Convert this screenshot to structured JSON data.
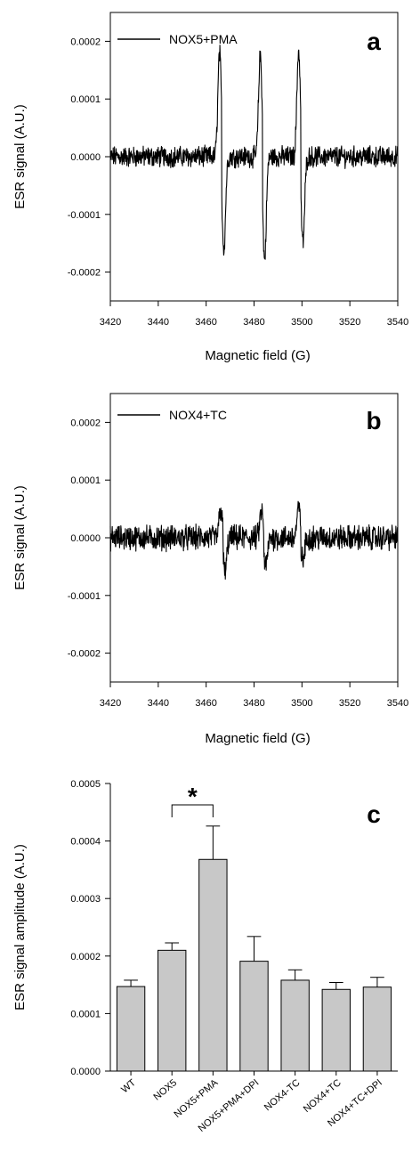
{
  "chart_data": [
    {
      "panel": "a",
      "type": "line",
      "xlabel": "Magnetic field (G)",
      "ylabel": "ESR signal (A.U.)",
      "xlim": [
        3420,
        3540
      ],
      "ylim": [
        -0.00025,
        0.00025
      ],
      "xticks": [
        3420,
        3440,
        3460,
        3480,
        3500,
        3520,
        3540
      ],
      "yticks": [
        -0.0002,
        -0.0001,
        0.0,
        0.0001,
        0.0002
      ],
      "xtick_labels": [
        "3420",
        "3440",
        "3460",
        "3480",
        "3500",
        "3520",
        "3540"
      ],
      "ytick_labels": [
        "-0.0002",
        "-0.0001",
        "0.0000",
        "0.0001",
        "0.0002"
      ],
      "legend": "top-left",
      "series": [
        {
          "name": "NOX5+PMA",
          "baseline_noise": 1.5e-05,
          "peaks": [
            {
              "x": 3466.5,
              "pos": 0.00018,
              "neg": -0.00016
            },
            {
              "x": 3483.5,
              "pos": 0.000175,
              "neg": -0.00018
            },
            {
              "x": 3499.5,
              "pos": 0.000185,
              "neg": -0.00015
            }
          ]
        }
      ]
    },
    {
      "panel": "b",
      "type": "line",
      "xlabel": "Magnetic field (G)",
      "ylabel": "ESR signal (A.U.)",
      "xlim": [
        3420,
        3540
      ],
      "ylim": [
        -0.00025,
        0.00025
      ],
      "xticks": [
        3420,
        3440,
        3460,
        3480,
        3500,
        3520,
        3540
      ],
      "yticks": [
        -0.0002,
        -0.0001,
        0.0,
        0.0001,
        0.0002
      ],
      "xtick_labels": [
        "3420",
        "3440",
        "3460",
        "3480",
        "3500",
        "3520",
        "3540"
      ],
      "ytick_labels": [
        "-0.0002",
        "-0.0001",
        "0.0000",
        "0.0001",
        "0.0002"
      ],
      "legend": "top-left",
      "series": [
        {
          "name": "NOX4+TC",
          "baseline_noise": 1.8e-05,
          "peaks": [
            {
              "x": 3467,
              "pos": 5e-05,
              "neg": -6e-05
            },
            {
              "x": 3484,
              "pos": 4.5e-05,
              "neg": -5e-05
            },
            {
              "x": 3499.5,
              "pos": 5e-05,
              "neg": -4e-05
            }
          ]
        }
      ]
    },
    {
      "panel": "c",
      "type": "bar",
      "xlabel": "",
      "ylabel": "ESR signal amplitude (A.U.)",
      "ylim": [
        0,
        0.0005
      ],
      "yticks": [
        0.0,
        0.0001,
        0.0002,
        0.0003,
        0.0004,
        0.0005
      ],
      "ytick_labels": [
        "0.0000",
        "0.0001",
        "0.0002",
        "0.0003",
        "0.0004",
        "0.0005"
      ],
      "categories": [
        "WT",
        "NOX5",
        "NOX5+PMA",
        "NOX5+PMA+DPI",
        "NOX4-TC",
        "NOX4+TC",
        "NOX4+TC+DPI"
      ],
      "values": [
        0.000147,
        0.00021,
        0.000368,
        0.000191,
        0.000158,
        0.000142,
        0.000146
      ],
      "errors": [
        1.1e-05,
        1.3e-05,
        5.8e-05,
        4.3e-05,
        1.8e-05,
        1.2e-05,
        1.7e-05
      ],
      "significance": {
        "between": [
          1,
          2
        ],
        "label": "*"
      },
      "bar_color": "#c8c8c8"
    }
  ]
}
